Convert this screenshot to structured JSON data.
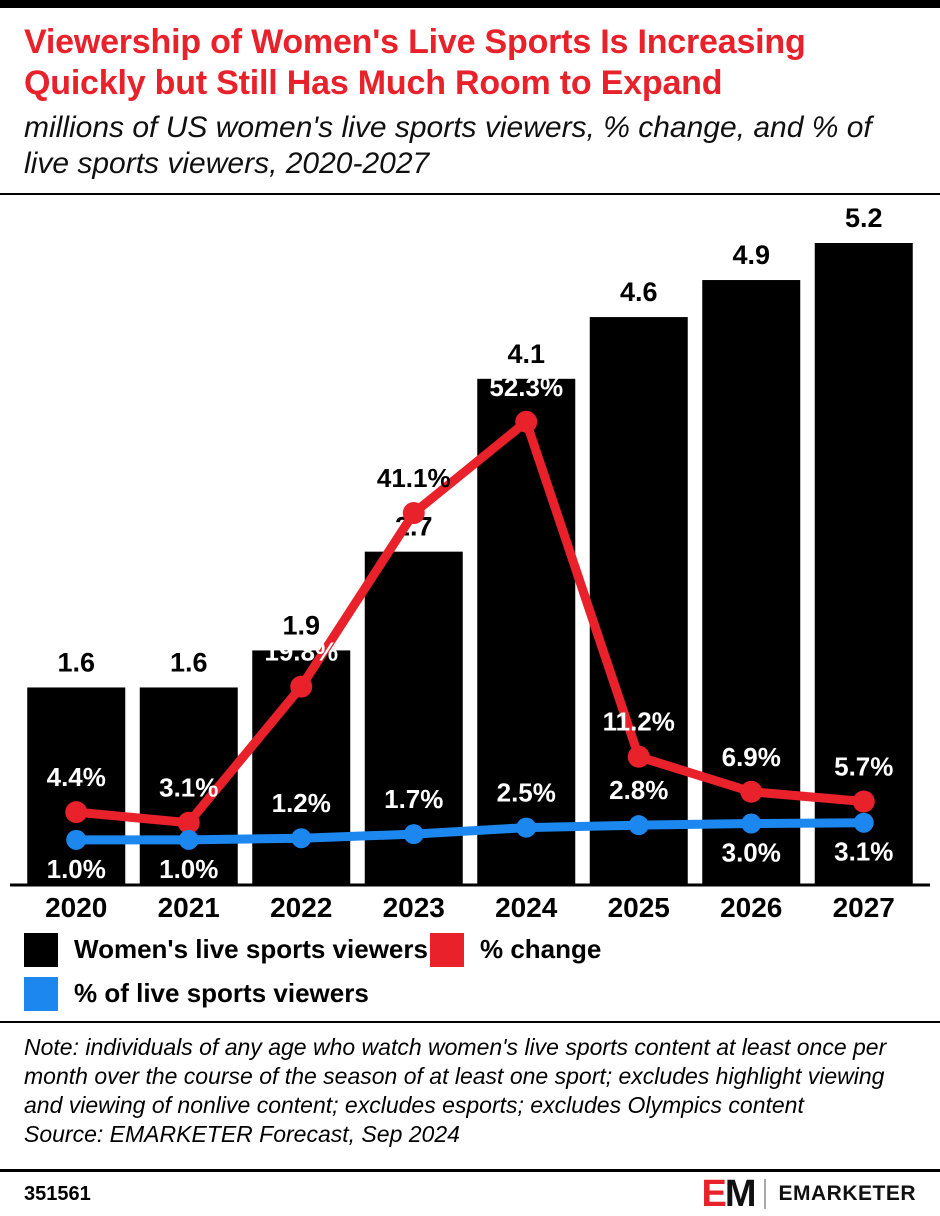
{
  "colors": {
    "red": "#e8212b",
    "blue": "#1d87f0",
    "black": "#000000"
  },
  "chart_data": {
    "type": "bar",
    "title": "Viewership of Women's Live Sports Is Increasing Quickly but Still Has Much Room to Expand",
    "subtitle": "millions of US women's live sports viewers, % change, and % of live sports viewers, 2020-2027",
    "categories": [
      "2020",
      "2021",
      "2022",
      "2023",
      "2024",
      "2025",
      "2026",
      "2027"
    ],
    "series": [
      {
        "name": "Women's live sports viewers",
        "type": "bar",
        "unit": "millions",
        "color": "#000000",
        "values": [
          1.6,
          1.6,
          1.9,
          2.7,
          4.1,
          4.6,
          4.9,
          5.2
        ],
        "labels": [
          "1.6",
          "1.6",
          "1.9",
          "2.7",
          "4.1",
          "4.6",
          "4.9",
          "5.2"
        ]
      },
      {
        "name": "% change",
        "type": "line",
        "color": "#e8212b",
        "values": [
          4.4,
          3.1,
          19.8,
          41.1,
          52.3,
          11.2,
          6.9,
          5.7
        ],
        "labels": [
          "4.4%",
          "3.1%",
          "19.8%",
          "41.1%",
          "52.3%",
          "11.2%",
          "6.9%",
          "5.7%"
        ],
        "label_position": [
          "above",
          "above",
          "above",
          "above",
          "above",
          "above",
          "above",
          "above"
        ]
      },
      {
        "name": "% of live sports viewers",
        "type": "line",
        "color": "#1d87f0",
        "values": [
          1.0,
          1.0,
          1.2,
          1.7,
          2.5,
          2.8,
          3.0,
          3.1
        ],
        "labels": [
          "1.0%",
          "1.0%",
          "1.2%",
          "1.7%",
          "2.5%",
          "2.8%",
          "3.0%",
          "3.1%"
        ],
        "label_position": [
          "below",
          "below",
          "above",
          "above",
          "above",
          "above",
          "below",
          "below"
        ]
      }
    ],
    "layout": {
      "grid": false,
      "legend_position": "bottom",
      "bar_axis_range": [
        0,
        5.5
      ],
      "secondary_axis": "percent, unlabeled"
    }
  },
  "legend": {
    "items": [
      {
        "label": "Women's live sports viewers",
        "color": "#000000"
      },
      {
        "label": "% change",
        "color": "#e8212b"
      },
      {
        "label": "% of live sports viewers",
        "color": "#1d87f0"
      }
    ]
  },
  "note": {
    "note": "Note: individuals of any age who watch women's live sports content at least once per month over the course of the season of at least one sport; excludes highlight viewing and viewing of nonlive content; excludes esports; excludes Olympics content",
    "source": "Source: EMARKETER Forecast, Sep 2024"
  },
  "footer": {
    "chart_id": "351561",
    "logo": {
      "e": "E",
      "m": "M",
      "wordmark": "EMARKETER"
    }
  }
}
